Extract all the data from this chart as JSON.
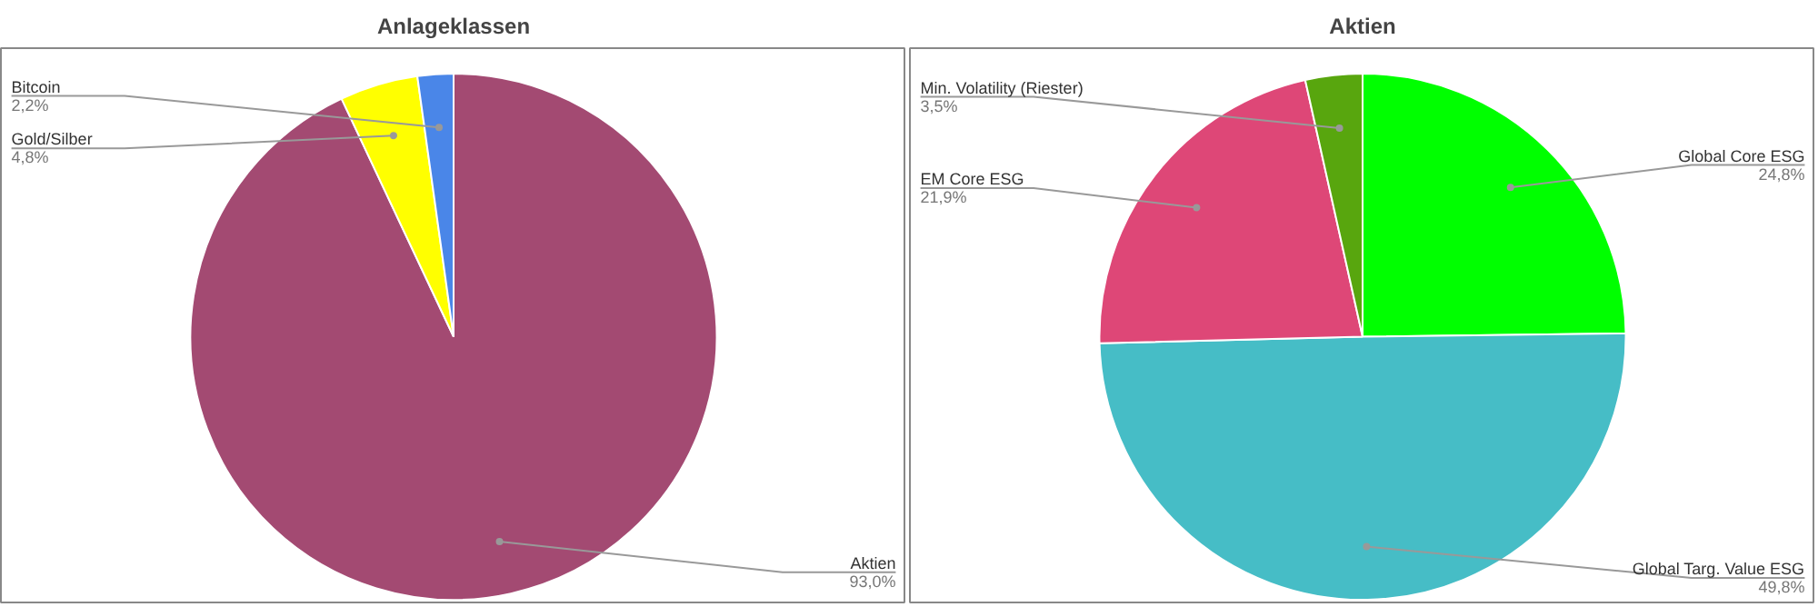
{
  "chart_data": [
    {
      "type": "pie",
      "title": "Anlageklassen",
      "categories": [
        "Aktien",
        "Gold/Silber",
        "Bitcoin"
      ],
      "values": [
        93.0,
        4.8,
        2.2
      ],
      "value_labels": [
        "93,0%",
        "4,8%",
        "2,2%"
      ],
      "colors": [
        "#a34a72",
        "#ffff00",
        "#4a86e8"
      ]
    },
    {
      "type": "pie",
      "title": "Aktien",
      "categories": [
        "Global Core ESG",
        "Global Targ. Value ESG",
        "EM Core ESG",
        "Min. Volatility (Riester)"
      ],
      "values": [
        24.8,
        49.8,
        21.9,
        3.5
      ],
      "value_labels": [
        "24,8%",
        "49,8%",
        "21,9%",
        "3,5%"
      ],
      "colors": [
        "#00ff00",
        "#46bdc6",
        "#de4777",
        "#58a60e"
      ]
    }
  ]
}
